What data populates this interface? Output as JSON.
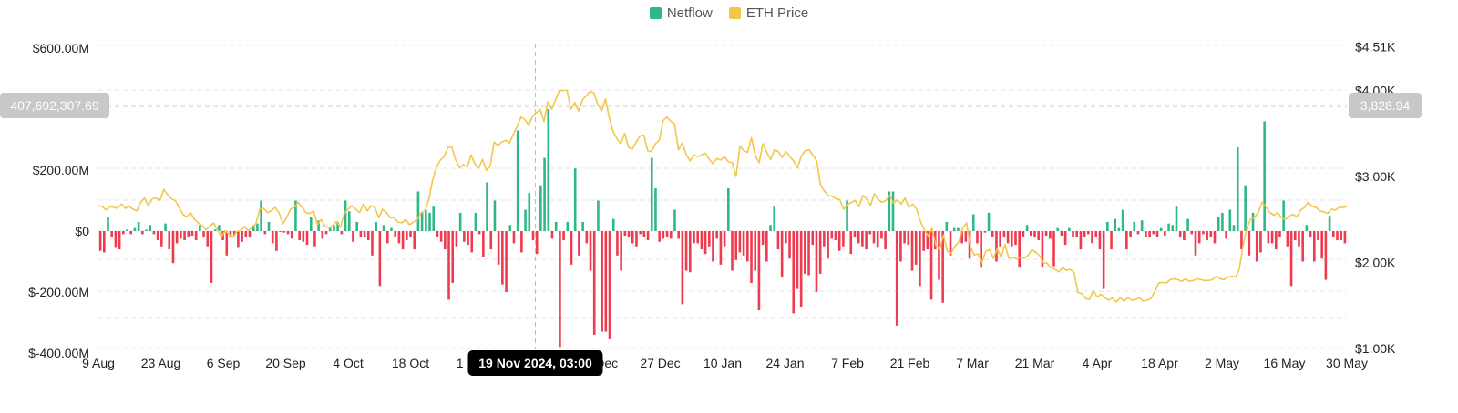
{
  "colors": {
    "netflow_positive": "#2eb888",
    "netflow_negative": "#ef3b4f",
    "eth_price": "#f3c64c",
    "grid": "#e6e6e6",
    "crosshair": "#bfbfbf",
    "tooltip_bg": "#000000",
    "badge_bg": "#c8c8c8"
  },
  "chart_data": {
    "type": "bar",
    "legend": [
      "Netflow",
      "ETH Price"
    ],
    "legend_placement": "top-center",
    "grid": true,
    "x_ticks": [
      "9 Aug",
      "23 Aug",
      "6 Sep",
      "20 Sep",
      "4 Oct",
      "18 Oct",
      "1 Nov",
      "19 Nov 2024, 03:00",
      "13 Dec",
      "27 Dec",
      "10 Jan",
      "24 Jan",
      "7 Feb",
      "21 Feb",
      "7 Mar",
      "21 Mar",
      "4 Apr",
      "18 Apr",
      "2 May",
      "16 May",
      "30 May"
    ],
    "y_left": {
      "ticks": [
        "$600.00M",
        "$200.00M",
        "$0",
        "$-200.00M",
        "$-400.00M"
      ],
      "range": [
        -400000000,
        600000000
      ]
    },
    "y_right": {
      "ticks": [
        "$4.51K",
        "$4.00K",
        "$3.00K",
        "$2.00K",
        "$1.00K"
      ],
      "range": [
        1000,
        4510
      ]
    },
    "crosshair": {
      "date": "19 Nov 2024, 03:00",
      "netflow_value": "407,692,307.69",
      "price_value": "3,828.94"
    },
    "series": [
      {
        "name": "Netflow",
        "description": "daily netflow (USD), inflow positive",
        "values": [
          -65000000,
          -70000000,
          45000000,
          -20000000,
          -55000000,
          -60000000,
          -10000000,
          5000000,
          -10000000,
          10000000,
          30000000,
          -10000000,
          5000000,
          20000000,
          -10000000,
          -30000000,
          -50000000,
          25000000,
          -60000000,
          -105000000,
          -40000000,
          -25000000,
          -30000000,
          -20000000,
          -15000000,
          -30000000,
          20000000,
          -20000000,
          -50000000,
          -170000000,
          5000000,
          20000000,
          -30000000,
          -80000000,
          -20000000,
          -15000000,
          -55000000,
          -35000000,
          -20000000,
          -20000000,
          20000000,
          25000000,
          100000000,
          -10000000,
          30000000,
          -40000000,
          -65000000,
          0,
          -5000000,
          -10000000,
          -25000000,
          100000000,
          -30000000,
          -35000000,
          -45000000,
          45000000,
          -50000000,
          35000000,
          -25000000,
          -10000000,
          10000000,
          20000000,
          30000000,
          -10000000,
          100000000,
          65000000,
          -35000000,
          30000000,
          -20000000,
          -20000000,
          -30000000,
          -80000000,
          30000000,
          -180000000,
          20000000,
          -40000000,
          10000000,
          -20000000,
          -40000000,
          -60000000,
          -30000000,
          -20000000,
          -60000000,
          130000000,
          60000000,
          70000000,
          60000000,
          80000000,
          -20000000,
          -35000000,
          -60000000,
          -225000000,
          -170000000,
          -50000000,
          60000000,
          -35000000,
          -45000000,
          -70000000,
          60000000,
          -10000000,
          -85000000,
          160000000,
          -60000000,
          100000000,
          -110000000,
          -175000000,
          -200000000,
          20000000,
          -40000000,
          330000000,
          -70000000,
          70000000,
          125000000,
          -30000000,
          -75000000,
          150000000,
          240000000,
          400000000,
          -25000000,
          30000000,
          -380000000,
          -30000000,
          30000000,
          -110000000,
          205000000,
          -80000000,
          30000000,
          -40000000,
          -130000000,
          -340000000,
          100000000,
          -330000000,
          -330000000,
          -355000000,
          40000000,
          -80000000,
          -130000000,
          -15000000,
          -20000000,
          -40000000,
          -50000000,
          -10000000,
          -20000000,
          -30000000,
          240000000,
          140000000,
          -35000000,
          -25000000,
          -20000000,
          -25000000,
          70000000,
          -25000000,
          -240000000,
          -130000000,
          -135000000,
          -40000000,
          -40000000,
          -60000000,
          -75000000,
          -50000000,
          -100000000,
          -25000000,
          -110000000,
          -50000000,
          140000000,
          -130000000,
          -95000000,
          -70000000,
          -80000000,
          -100000000,
          -170000000,
          -130000000,
          -260000000,
          -45000000,
          -100000000,
          20000000,
          80000000,
          -60000000,
          -150000000,
          -40000000,
          -90000000,
          -270000000,
          -190000000,
          -250000000,
          -140000000,
          -145000000,
          -45000000,
          -200000000,
          -140000000,
          -50000000,
          -90000000,
          -25000000,
          -30000000,
          -65000000,
          -50000000,
          100000000,
          -75000000,
          -20000000,
          -40000000,
          -50000000,
          -60000000,
          -10000000,
          -40000000,
          -55000000,
          -25000000,
          -60000000,
          130000000,
          130000000,
          -310000000,
          -100000000,
          -40000000,
          -45000000,
          -130000000,
          -110000000,
          -180000000,
          -65000000,
          -60000000,
          -225000000,
          -60000000,
          -160000000,
          -235000000,
          30000000,
          -80000000,
          10000000,
          10000000,
          -40000000,
          -35000000,
          -90000000,
          55000000,
          -40000000,
          -120000000,
          -5000000,
          60000000,
          -20000000,
          -100000000,
          -50000000,
          -20000000,
          -40000000,
          -50000000,
          -45000000,
          -120000000,
          -20000000,
          20000000,
          -15000000,
          -20000000,
          -30000000,
          -120000000,
          -15000000,
          -25000000,
          -115000000,
          10000000,
          -15000000,
          -45000000,
          10000000,
          -20000000,
          -20000000,
          -60000000,
          -20000000,
          -10000000,
          -40000000,
          -20000000,
          -60000000,
          -190000000,
          30000000,
          -60000000,
          40000000,
          10000000,
          70000000,
          -60000000,
          -20000000,
          30000000,
          -10000000,
          35000000,
          -20000000,
          -20000000,
          -10000000,
          -20000000,
          10000000,
          -15000000,
          25000000,
          20000000,
          80000000,
          -20000000,
          -30000000,
          40000000,
          -10000000,
          -80000000,
          -40000000,
          -10000000,
          -30000000,
          -20000000,
          -40000000,
          45000000,
          60000000,
          -25000000,
          70000000,
          20000000,
          275000000,
          -60000000,
          150000000,
          -80000000,
          60000000,
          -100000000,
          -70000000,
          360000000,
          -40000000,
          -40000000,
          -60000000,
          -20000000,
          100000000,
          -50000000,
          -180000000,
          -30000000,
          -50000000,
          -100000000,
          20000000,
          -20000000,
          -100000000,
          -30000000,
          -90000000,
          -160000000,
          50000000,
          -20000000,
          -30000000,
          -30000000,
          -40000000
        ]
      },
      {
        "name": "ETH Price",
        "description": "ETH price (USD)",
        "values": [
          2660,
          2650,
          2610,
          2650,
          2640,
          2630,
          2680,
          2630,
          2650,
          2620,
          2600,
          2700,
          2750,
          2660,
          2740,
          2750,
          2720,
          2850,
          2790,
          2740,
          2720,
          2640,
          2560,
          2530,
          2580,
          2500,
          2460,
          2430,
          2380,
          2420,
          2460,
          2380,
          2300,
          2370,
          2330,
          2290,
          2360,
          2370,
          2420,
          2370,
          2410,
          2450,
          2620,
          2630,
          2580,
          2600,
          2640,
          2580,
          2450,
          2520,
          2620,
          2640,
          2700,
          2640,
          2580,
          2570,
          2600,
          2440,
          2500,
          2420,
          2400,
          2430,
          2480,
          2410,
          2570,
          2620,
          2660,
          2620,
          2580,
          2680,
          2600,
          2660,
          2640,
          2520,
          2620,
          2580,
          2520,
          2520,
          2470,
          2460,
          2500,
          2440,
          2470,
          2500,
          2580,
          2600,
          2730,
          2960,
          3110,
          3190,
          3230,
          3340,
          3340,
          3190,
          3100,
          3140,
          3110,
          3250,
          3150,
          3100,
          3200,
          3070,
          3120,
          3400,
          3360,
          3400,
          3420,
          3390,
          3490,
          3580,
          3690,
          3660,
          3600,
          3700,
          3740,
          3780,
          3640,
          3870,
          3780,
          3890,
          4000,
          4000,
          4000,
          3780,
          3860,
          3760,
          3890,
          3940,
          3990,
          3970,
          3840,
          3760,
          3900,
          3680,
          3520,
          3440,
          3380,
          3500,
          3340,
          3320,
          3400,
          3470,
          3480,
          3300,
          3290,
          3380,
          3420,
          3650,
          3690,
          3640,
          3610,
          3310,
          3390,
          3260,
          3180,
          3250,
          3230,
          3250,
          3270,
          3200,
          3150,
          3210,
          3190,
          3230,
          3170,
          3160,
          3000,
          3350,
          3300,
          3280,
          3450,
          3240,
          3160,
          3380,
          3280,
          3200,
          3310,
          3290,
          3220,
          3290,
          3230,
          3180,
          3100,
          3240,
          3300,
          3310,
          3250,
          3180,
          2900,
          2830,
          2780,
          2770,
          2740,
          2730,
          2620,
          2670,
          2700,
          2720,
          2650,
          2780,
          2740,
          2660,
          2800,
          2730,
          2700,
          2720,
          2780,
          2690,
          2730,
          2680,
          2750,
          2640,
          2680,
          2620,
          2480,
          2380,
          2310,
          2400,
          2200,
          2150,
          2320,
          2130,
          2110,
          2190,
          2240,
          2400,
          2460,
          2180,
          2090,
          2100,
          2000,
          2130,
          2150,
          2050,
          2160,
          2060,
          2210,
          2050,
          2060,
          2040,
          2060,
          2050,
          2080,
          2150,
          2120,
          2080,
          2000,
          1990,
          1940,
          1920,
          1890,
          1940,
          1910,
          1920,
          1880,
          1650,
          1640,
          1580,
          1570,
          1670,
          1600,
          1630,
          1590,
          1560,
          1590,
          1540,
          1590,
          1550,
          1590,
          1560,
          1570,
          1590,
          1550,
          1560,
          1580,
          1660,
          1760,
          1770,
          1760,
          1800,
          1810,
          1800,
          1780,
          1810,
          1780,
          1790,
          1810,
          1800,
          1790,
          1790,
          1800,
          1840,
          1810,
          1800,
          1830,
          1840,
          1830,
          1920,
          2200,
          2400,
          2510,
          2520,
          2590,
          2700,
          2640,
          2580,
          2550,
          2580,
          2520,
          2500,
          2540,
          2560,
          2530,
          2610,
          2640,
          2700,
          2650,
          2640,
          2600,
          2590,
          2570,
          2620,
          2610,
          2640,
          2640,
          2650
        ]
      }
    ]
  }
}
